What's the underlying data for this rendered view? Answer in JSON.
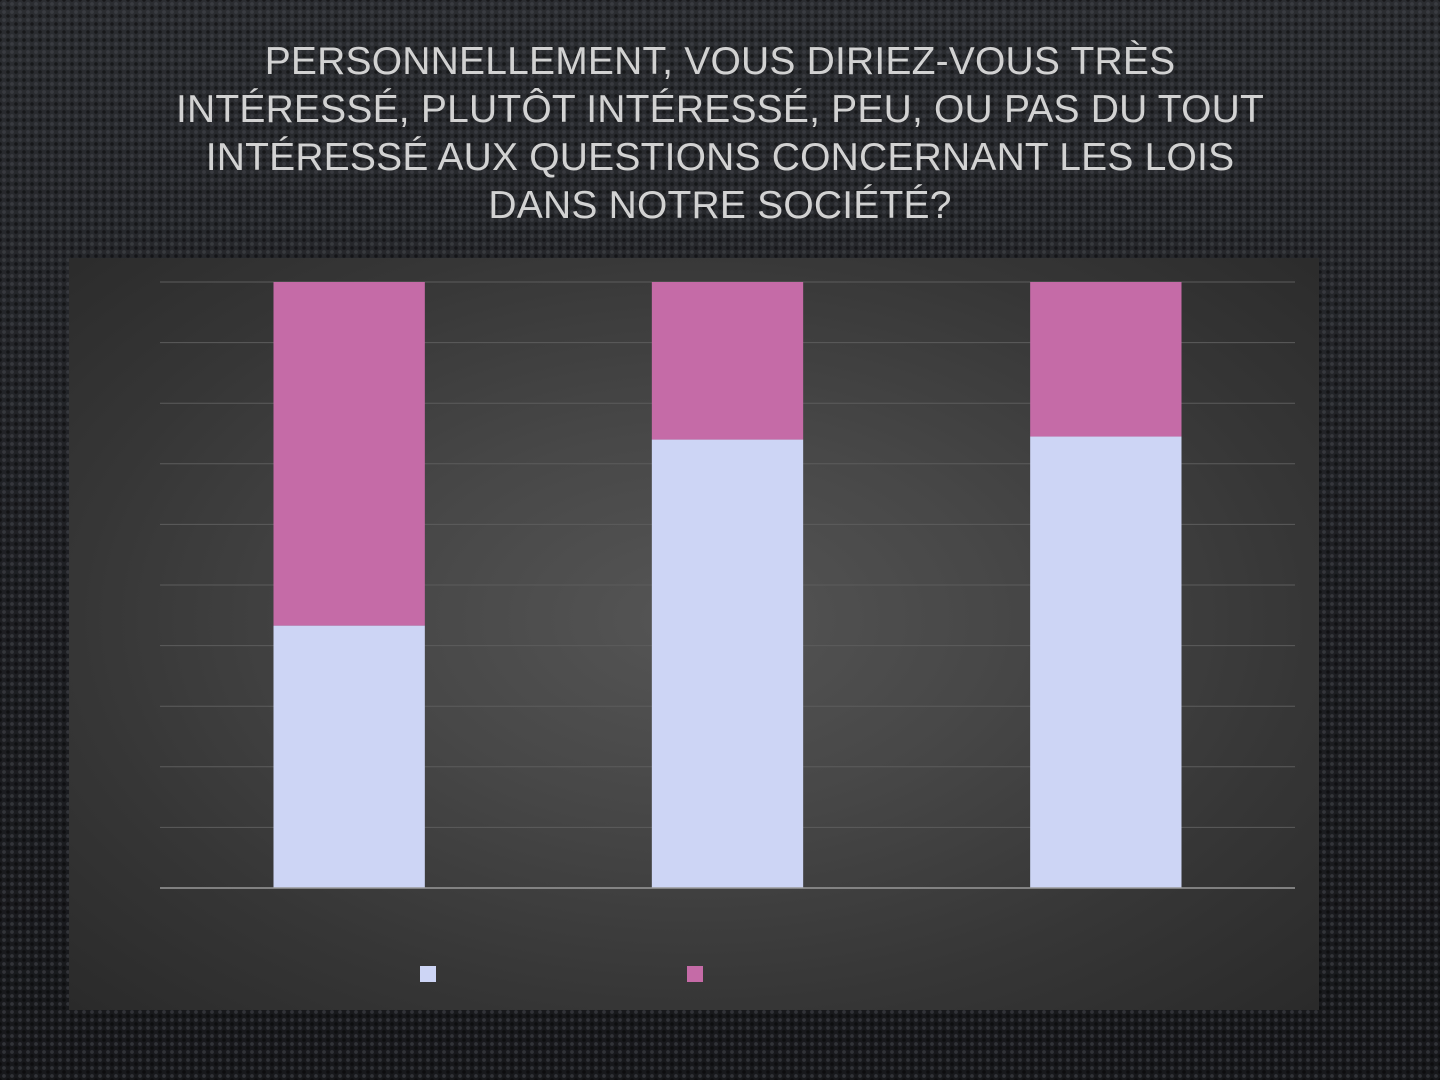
{
  "title": "PERSONNELLEMENT, VOUS DIRIEZ-VOUS TRÈS INTÉRESSÉ, PLUTÔT INTÉRESSÉ, PEU, OU PAS DU TOUT INTÉRESSÉ AUX QUESTIONS CONCERNANT LES LOIS DANS NOTRE SOCIÉTÉ?",
  "colors": {
    "series1": "#cdd5f5",
    "series2": "#c56ba7",
    "gridline": "#5c5c5c",
    "axis": "#9a9a9a"
  },
  "chart_data": {
    "type": "bar",
    "stacked": true,
    "categories": [
      "",
      "",
      ""
    ],
    "series": [
      {
        "values": [
          43.3,
          74.0,
          74.5
        ]
      },
      {
        "values": [
          56.7,
          26.0,
          25.5
        ]
      }
    ],
    "ylim": [
      0,
      100
    ],
    "y_gridlines": 10,
    "grid": true,
    "legend_position": "bottom"
  }
}
